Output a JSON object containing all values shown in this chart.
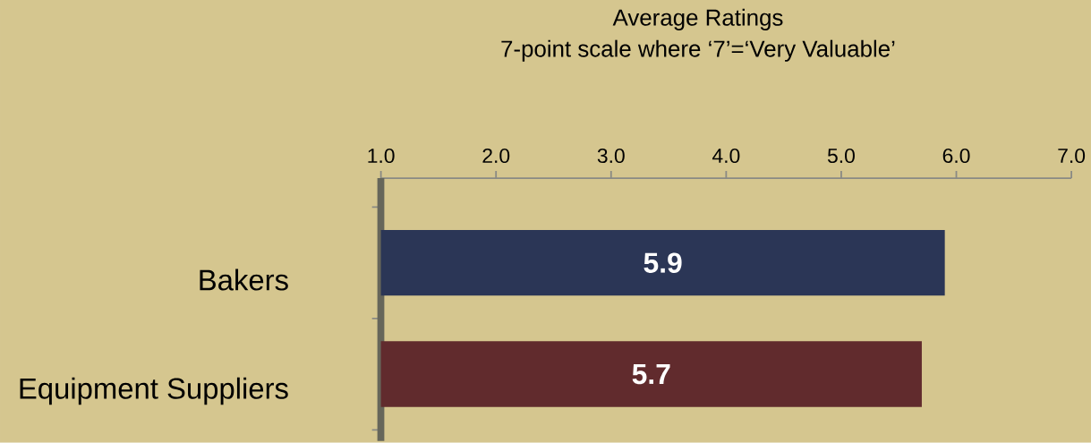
{
  "chart_data": {
    "type": "bar",
    "orientation": "horizontal",
    "title": "Average Ratings",
    "subtitle": "7-point scale where ‘7’=‘Very Valuable’",
    "categories": [
      "Bakers",
      "Equipment Suppliers"
    ],
    "values": [
      5.9,
      5.7
    ],
    "colors": [
      "#2b3656",
      "#612b2d"
    ],
    "xlim": [
      1,
      7
    ],
    "xticks": [
      {
        "value": 1,
        "label": "1.0"
      },
      {
        "value": 2,
        "label": "2.0"
      },
      {
        "value": 3,
        "label": "3.0"
      },
      {
        "value": 4,
        "label": "4.0"
      },
      {
        "value": 5,
        "label": "5.0"
      },
      {
        "value": 6,
        "label": "6.0"
      },
      {
        "value": 7,
        "label": "7.0"
      }
    ],
    "data_labels": true
  }
}
